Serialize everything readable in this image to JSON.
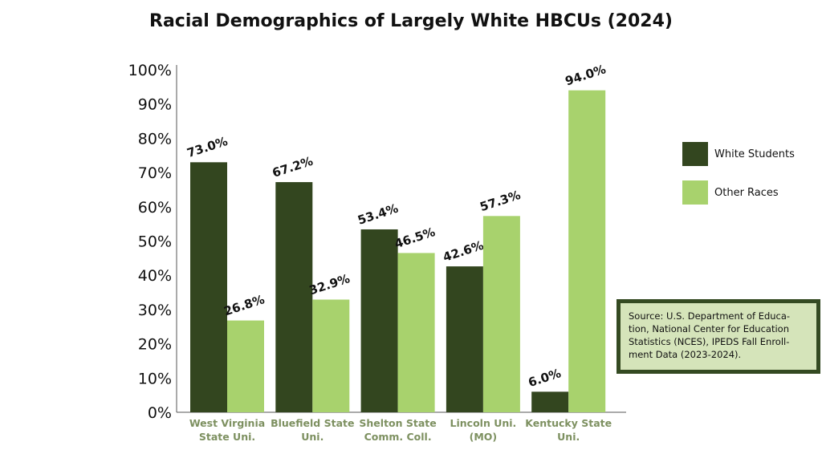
{
  "chart_data": {
    "type": "bar",
    "title": "Racial Demographics of Largely White HBCUs (2024)",
    "categories": [
      [
        "West Virginia",
        "State Uni."
      ],
      [
        "Bluefield State",
        "Uni."
      ],
      [
        "Shelton State",
        "Comm. Coll."
      ],
      [
        "Lincoln Uni.",
        "(MO)"
      ],
      [
        "Kentucky State",
        "Uni."
      ]
    ],
    "series": [
      {
        "name": "White Students",
        "color": "#33461f",
        "values": [
          73.0,
          67.2,
          53.4,
          42.6,
          6.0
        ],
        "labels": [
          "73.0%",
          "67.2%",
          "53.4%",
          "42.6%",
          "6.0%"
        ]
      },
      {
        "name": "Other Races",
        "color": "#a8d26d",
        "values": [
          26.8,
          32.9,
          46.5,
          57.3,
          94.0
        ],
        "labels": [
          "26.8%",
          "32.9%",
          "46.5%",
          "57.3%",
          "94.0%"
        ]
      }
    ],
    "yticks": [
      "0%",
      "10%",
      "20%",
      "30%",
      "40%",
      "50%",
      "60%",
      "70%",
      "80%",
      "90%",
      "100%"
    ],
    "ylim": [
      0,
      100
    ],
    "xlabel": "",
    "ylabel": "",
    "grid": false,
    "legend": "right"
  },
  "source": "Source: U.S. Department of Educa-tion, National Center for Education Statistics (NCES), IPEDS Fall Enroll-ment Data (2023-2024)."
}
